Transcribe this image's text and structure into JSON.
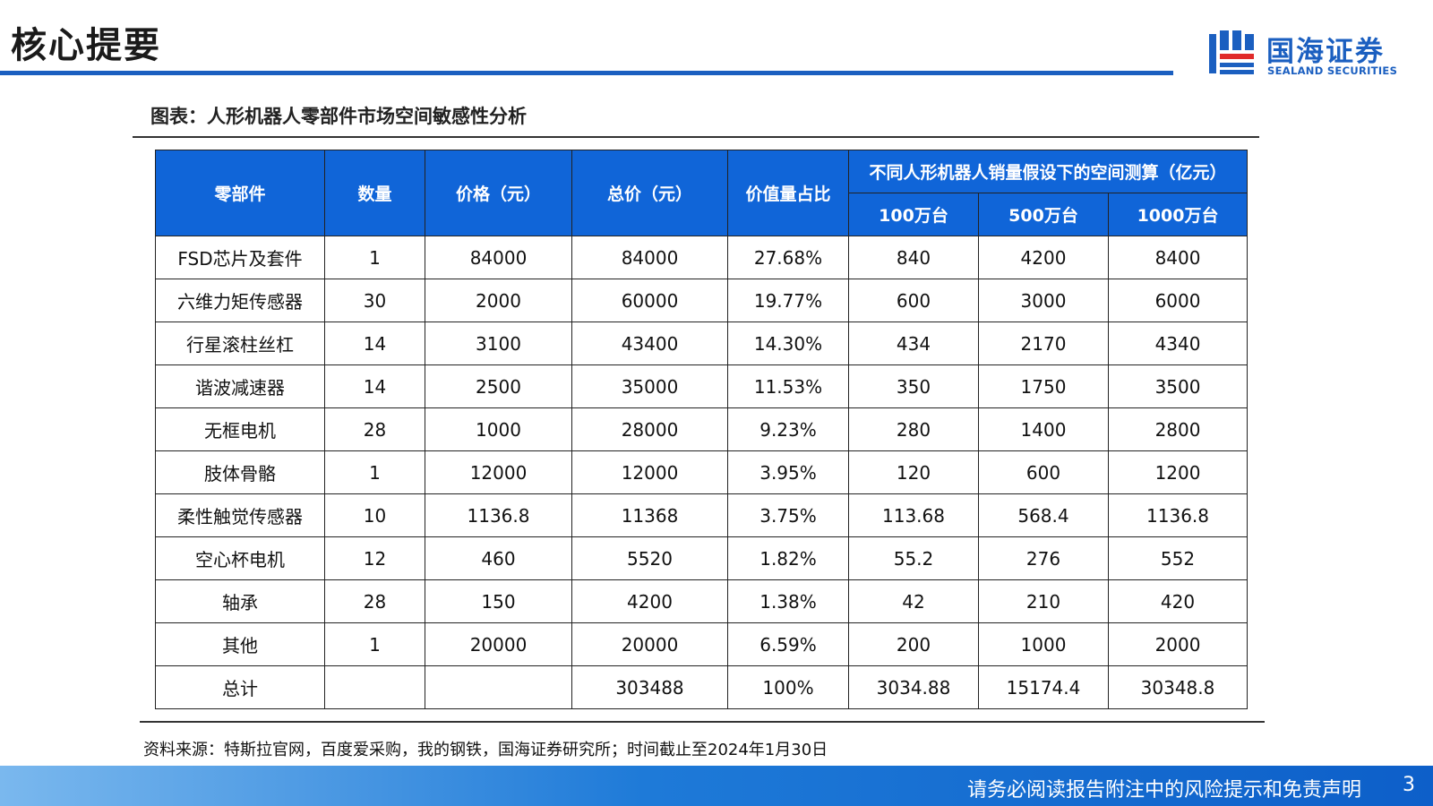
{
  "header": {
    "title": "核心提要",
    "logo_cn": "国海证券",
    "logo_en": "SEALAND SECURITIES",
    "brand_color": "#1b5fc0"
  },
  "figure": {
    "caption": "图表：人形机器人零部件市场空间敏感性分析"
  },
  "table": {
    "header_color": "#1065d8",
    "columns": {
      "part": "零部件",
      "qty": "数量",
      "price": "价格（元）",
      "total": "总价（元）",
      "share": "价值量占比",
      "market_group": "不同人形机器人销量假设下的空间测算（亿元）",
      "m100": "100万台",
      "m500": "500万台",
      "m1000": "1000万台"
    },
    "rows": [
      {
        "part": "FSD芯片及套件",
        "qty": "1",
        "price": "84000",
        "total": "84000",
        "share": "27.68%",
        "m100": "840",
        "m500": "4200",
        "m1000": "8400"
      },
      {
        "part": "六维力矩传感器",
        "qty": "30",
        "price": "2000",
        "total": "60000",
        "share": "19.77%",
        "m100": "600",
        "m500": "3000",
        "m1000": "6000"
      },
      {
        "part": "行星滚柱丝杠",
        "qty": "14",
        "price": "3100",
        "total": "43400",
        "share": "14.30%",
        "m100": "434",
        "m500": "2170",
        "m1000": "4340"
      },
      {
        "part": "谐波减速器",
        "qty": "14",
        "price": "2500",
        "total": "35000",
        "share": "11.53%",
        "m100": "350",
        "m500": "1750",
        "m1000": "3500"
      },
      {
        "part": "无框电机",
        "qty": "28",
        "price": "1000",
        "total": "28000",
        "share": "9.23%",
        "m100": "280",
        "m500": "1400",
        "m1000": "2800"
      },
      {
        "part": "肢体骨骼",
        "qty": "1",
        "price": "12000",
        "total": "12000",
        "share": "3.95%",
        "m100": "120",
        "m500": "600",
        "m1000": "1200"
      },
      {
        "part": "柔性触觉传感器",
        "qty": "10",
        "price": "1136.8",
        "total": "11368",
        "share": "3.75%",
        "m100": "113.68",
        "m500": "568.4",
        "m1000": "1136.8"
      },
      {
        "part": "空心杯电机",
        "qty": "12",
        "price": "460",
        "total": "5520",
        "share": "1.82%",
        "m100": "55.2",
        "m500": "276",
        "m1000": "552"
      },
      {
        "part": "轴承",
        "qty": "28",
        "price": "150",
        "total": "4200",
        "share": "1.38%",
        "m100": "42",
        "m500": "210",
        "m1000": "420"
      },
      {
        "part": "其他",
        "qty": "1",
        "price": "20000",
        "total": "20000",
        "share": "6.59%",
        "m100": "200",
        "m500": "1000",
        "m1000": "2000"
      },
      {
        "part": "总计",
        "qty": "",
        "price": "",
        "total": "303488",
        "share": "100%",
        "m100": "3034.88",
        "m500": "15174.4",
        "m1000": "30348.8"
      }
    ]
  },
  "source": {
    "note": "资料来源：特斯拉官网，百度爱采购，我的钢铁，国海证券研究所；时间截止至2024年1月30日"
  },
  "footer": {
    "disclaimer": "请务必阅读报告附注中的风险提示和免责声明",
    "page_number": "3"
  }
}
